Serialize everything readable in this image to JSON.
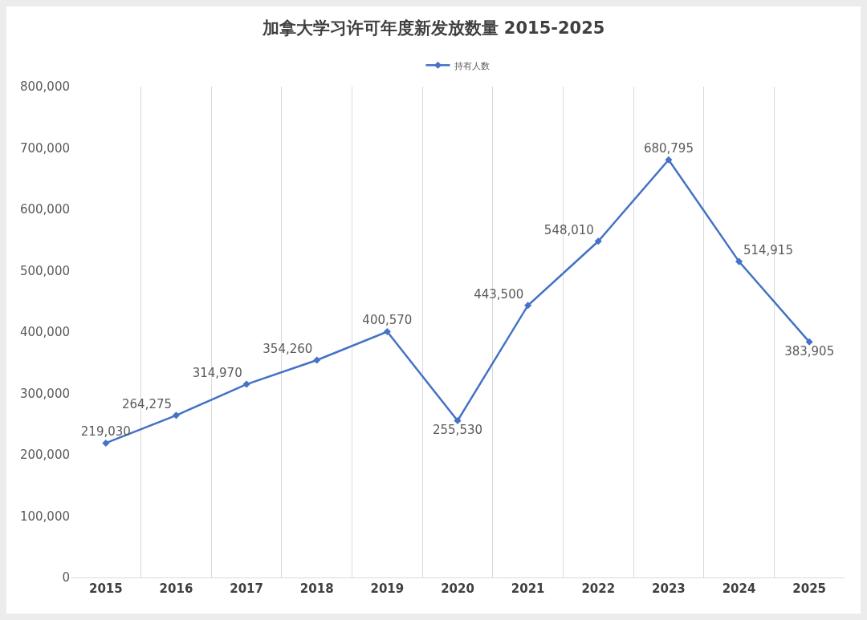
{
  "chart_data": {
    "type": "line",
    "title": "加拿大学习许可年度新发放数量 2015-2025",
    "categories": [
      "2015",
      "2016",
      "2017",
      "2018",
      "2019",
      "2020",
      "2021",
      "2022",
      "2023",
      "2024",
      "2025"
    ],
    "series": [
      {
        "name": "持有人数",
        "color": "#4472c4",
        "values": [
          219030,
          264275,
          314970,
          354260,
          400570,
          255530,
          443500,
          548010,
          680795,
          514915,
          383905
        ],
        "value_labels": [
          "219,030",
          "264,275",
          "314,970",
          "354,260",
          "400,570",
          "255,530",
          "443,500",
          "548,010",
          "680,795",
          "514,915",
          "383,905"
        ]
      }
    ],
    "ylim": [
      0,
      800000
    ],
    "yticks": [
      {
        "value": 0,
        "label": "0"
      },
      {
        "value": 100000,
        "label": "100,000"
      },
      {
        "value": 200000,
        "label": "200,000"
      },
      {
        "value": 300000,
        "label": "300,000"
      },
      {
        "value": 400000,
        "label": "400,000"
      },
      {
        "value": 500000,
        "label": "500,000"
      },
      {
        "value": 600000,
        "label": "600,000"
      },
      {
        "value": 700000,
        "label": "700,000"
      },
      {
        "value": 800000,
        "label": "800,000"
      }
    ],
    "grid": "x",
    "legend": "top",
    "marker": "diamond",
    "line_style": "solid"
  }
}
